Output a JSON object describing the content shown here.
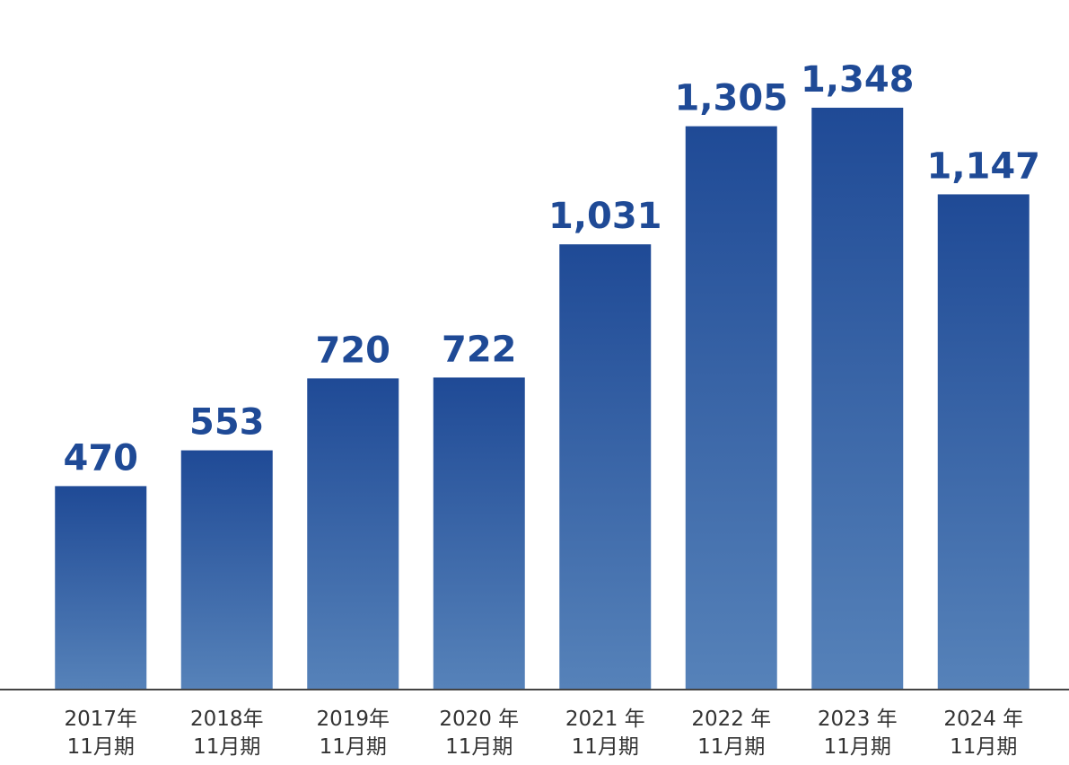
{
  "chart_data": {
    "type": "bar",
    "categories": [
      [
        "2017年",
        "11月期"
      ],
      [
        "2018年",
        "11月期"
      ],
      [
        "2019年",
        "11月期"
      ],
      [
        "2020 年",
        "11月期"
      ],
      [
        "2021 年",
        "11月期"
      ],
      [
        "2022 年",
        "11月期"
      ],
      [
        "2023 年",
        "11月期"
      ],
      [
        "2024 年",
        "11月期"
      ]
    ],
    "values": [
      470,
      553,
      720,
      722,
      1031,
      1305,
      1348,
      1147
    ],
    "value_labels": [
      "470",
      "553",
      "720",
      "722",
      "1,031",
      "1,305",
      "1,348",
      "1,147"
    ],
    "color": "#1f4a96",
    "ylim": [
      0,
      1400
    ]
  }
}
